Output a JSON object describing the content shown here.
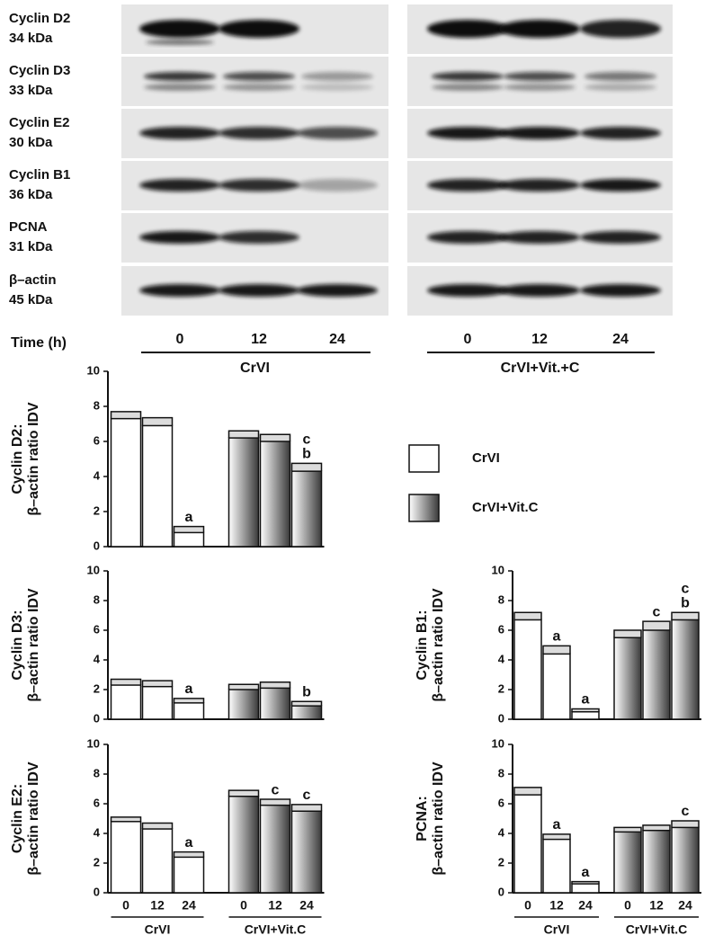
{
  "blot": {
    "rows": [
      {
        "label": "Cyclin D2",
        "size": "34 kDa"
      },
      {
        "label": "Cyclin D3",
        "size": "33 kDa"
      },
      {
        "label": "Cyclin E2",
        "size": "30 kDa"
      },
      {
        "label": "Cyclin B1",
        "size": "36 kDa"
      },
      {
        "label": "PCNA",
        "size": "31 kDa"
      },
      {
        "label": "β–actin",
        "size": "45 kDa"
      }
    ],
    "time_label": "Time (h)",
    "times": [
      "0",
      "12",
      "24"
    ],
    "groups": [
      "CrVI",
      "CrVI+Vit.+C"
    ]
  },
  "chart_data": [
    {
      "type": "bar",
      "ylabel": [
        "Cyclin D2:",
        "β–actin ratio IDV"
      ],
      "ylim": [
        0,
        10
      ],
      "yticks": [
        0,
        2,
        4,
        6,
        8,
        10
      ],
      "legend": true,
      "series": [
        {
          "name": "CrVI",
          "color": "#ffffff",
          "values": [
            7.3,
            6.9,
            0.8
          ],
          "errors": [
            0.4,
            0.45,
            0.35
          ],
          "letters": [
            [],
            [],
            [
              "a"
            ]
          ]
        },
        {
          "name": "CrVI+Vit.C",
          "color": "#3a3a3a",
          "values": [
            6.2,
            6.0,
            4.3
          ],
          "errors": [
            0.4,
            0.4,
            0.45
          ],
          "letters": [
            [],
            [],
            [
              "c",
              "b"
            ]
          ]
        }
      ]
    },
    {
      "type": "bar",
      "ylabel": [
        "Cyclin D3:",
        "β–actin ratio IDV"
      ],
      "ylim": [
        0,
        10
      ],
      "yticks": [
        0,
        2,
        4,
        6,
        8,
        10
      ],
      "series": [
        {
          "color": "#ffffff",
          "values": [
            2.3,
            2.2,
            1.1
          ],
          "errors": [
            0.4,
            0.4,
            0.3
          ],
          "letters": [
            [],
            [],
            [
              "a"
            ]
          ]
        },
        {
          "color": "#3a3a3a",
          "values": [
            2.0,
            2.1,
            0.9
          ],
          "errors": [
            0.35,
            0.4,
            0.3
          ],
          "letters": [
            [],
            [],
            [
              "b"
            ]
          ]
        }
      ]
    },
    {
      "type": "bar",
      "ylabel": [
        "Cyclin B1:",
        "β–actin ratio IDV"
      ],
      "ylim": [
        0,
        10
      ],
      "yticks": [
        0,
        2,
        4,
        6,
        8,
        10
      ],
      "series": [
        {
          "color": "#ffffff",
          "values": [
            6.7,
            4.4,
            0.5
          ],
          "errors": [
            0.5,
            0.55,
            0.2
          ],
          "letters": [
            [],
            [
              "a"
            ],
            [
              "a"
            ]
          ]
        },
        {
          "color": "#3a3a3a",
          "values": [
            5.5,
            6.0,
            6.7
          ],
          "errors": [
            0.5,
            0.6,
            0.5
          ],
          "letters": [
            [],
            [
              "c"
            ],
            [
              "c",
              "b"
            ]
          ]
        }
      ]
    },
    {
      "type": "bar",
      "ylabel": [
        "Cyclin E2:",
        "β–actin ratio IDV"
      ],
      "ylim": [
        0,
        10
      ],
      "yticks": [
        0,
        2,
        4,
        6,
        8,
        10
      ],
      "categories": [
        "0",
        "12",
        "24"
      ],
      "series": [
        {
          "name": "CrVI",
          "color": "#ffffff",
          "values": [
            4.8,
            4.3,
            2.4
          ],
          "errors": [
            0.3,
            0.4,
            0.35
          ],
          "letters": [
            [],
            [],
            [
              "a"
            ]
          ]
        },
        {
          "name": "CrVI+Vit.C",
          "color": "#3a3a3a",
          "values": [
            6.5,
            5.9,
            5.5
          ],
          "errors": [
            0.4,
            0.4,
            0.45
          ],
          "letters": [
            [],
            [
              "c"
            ],
            [
              "c"
            ]
          ]
        }
      ]
    },
    {
      "type": "bar",
      "ylabel": [
        "PCNA:",
        "β–actin ratio IDV"
      ],
      "ylim": [
        0,
        10
      ],
      "yticks": [
        0,
        2,
        4,
        6,
        8,
        10
      ],
      "categories": [
        "0",
        "12",
        "24"
      ],
      "series": [
        {
          "name": "CrVI",
          "color": "#ffffff",
          "values": [
            6.6,
            3.6,
            0.6
          ],
          "errors": [
            0.5,
            0.35,
            0.15
          ],
          "letters": [
            [],
            [
              "a"
            ],
            [
              "a"
            ]
          ]
        },
        {
          "name": "CrVI+Vit.C",
          "color": "#3a3a3a",
          "values": [
            4.1,
            4.2,
            4.4
          ],
          "errors": [
            0.3,
            0.35,
            0.45
          ],
          "letters": [
            [],
            [],
            [
              "c"
            ]
          ]
        }
      ]
    }
  ]
}
